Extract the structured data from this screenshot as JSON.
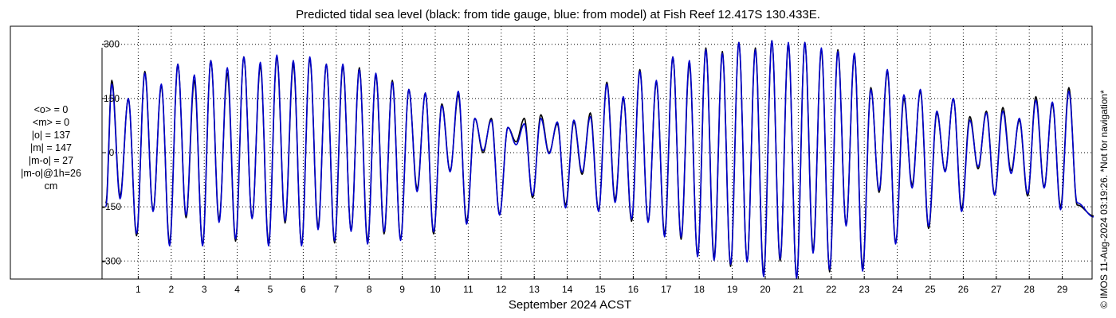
{
  "title": "Predicted tidal sea level (black: from tide gauge, blue: from model) at Fish Reef 12.417S 130.433E.",
  "stats_lines": [
    "<o> = 0",
    "<m> = 0",
    "|o| = 137",
    "|m| = 147",
    "|m-o| = 27",
    "|m-o|@1h=26",
    "cm"
  ],
  "side_note": "© IMOS 11-Aug-2024 03:19:26. *Not for navigation*",
  "colors": {
    "observed": "#000000",
    "model": "#0000cc",
    "grid": "#000000",
    "axes": "#000000"
  },
  "chart_data": {
    "type": "line",
    "title": "Predicted tidal sea level (black: from tide gauge, blue: from model) at Fish Reef 12.417S 130.433E.",
    "xlabel": "September 2024 ACST",
    "ylabel": "",
    "y_unit": "cm",
    "ylim": [
      -350,
      350
    ],
    "xlim": [
      0.0,
      30.0
    ],
    "y_ticks": [
      -300,
      -150,
      0,
      150,
      300
    ],
    "y_tick_labels": [
      "-300",
      "-150",
      "0",
      "150",
      "300"
    ],
    "x_ticks": [
      1,
      2,
      3,
      4,
      5,
      6,
      7,
      8,
      9,
      10,
      11,
      12,
      13,
      14,
      15,
      16,
      17,
      18,
      19,
      20,
      21,
      22,
      23,
      24,
      25,
      26,
      27,
      28,
      29
    ],
    "x_tick_labels": [
      "1",
      "2",
      "3",
      "4",
      "5",
      "6",
      "7",
      "8",
      "9",
      "10",
      "11",
      "12",
      "13",
      "14",
      "15",
      "16",
      "17",
      "18",
      "19",
      "20",
      "21",
      "22",
      "23",
      "24",
      "25",
      "26",
      "27",
      "28",
      "29"
    ],
    "grid": "dotted, at y ticks and x ticks",
    "legend": "none (colors described in title)",
    "series": [
      {
        "name": "tide gauge",
        "color": "black",
        "style": "line",
        "high_tide_peaks": [
          [
            0.2,
            200
          ],
          [
            0.7,
            150
          ],
          [
            1.2,
            225
          ],
          [
            1.7,
            185
          ],
          [
            2.2,
            245
          ],
          [
            2.7,
            200
          ],
          [
            3.2,
            255
          ],
          [
            3.7,
            220
          ],
          [
            4.2,
            265
          ],
          [
            4.7,
            240
          ],
          [
            5.2,
            265
          ],
          [
            5.7,
            245
          ],
          [
            6.2,
            260
          ],
          [
            6.7,
            245
          ],
          [
            7.2,
            240
          ],
          [
            7.7,
            235
          ],
          [
            8.2,
            215
          ],
          [
            8.7,
            200
          ],
          [
            9.2,
            175
          ],
          [
            9.7,
            165
          ],
          [
            10.2,
            135
          ],
          [
            10.7,
            160
          ],
          [
            11.2,
            95
          ],
          [
            11.7,
            95
          ],
          [
            12.2,
            70
          ],
          [
            12.7,
            95
          ],
          [
            13.2,
            105
          ],
          [
            13.7,
            80
          ],
          [
            14.2,
            85
          ],
          [
            14.7,
            110
          ],
          [
            15.2,
            195
          ],
          [
            15.7,
            150
          ],
          [
            16.2,
            230
          ],
          [
            16.7,
            195
          ],
          [
            17.2,
            265
          ],
          [
            17.7,
            245
          ],
          [
            18.2,
            290
          ],
          [
            18.7,
            280
          ],
          [
            19.2,
            305
          ],
          [
            19.7,
            290
          ],
          [
            20.2,
            310
          ],
          [
            20.7,
            300
          ],
          [
            21.2,
            305
          ],
          [
            21.7,
            285
          ],
          [
            22.2,
            285
          ],
          [
            22.7,
            270
          ],
          [
            23.2,
            180
          ],
          [
            23.7,
            225
          ],
          [
            24.2,
            150
          ],
          [
            24.7,
            170
          ],
          [
            25.2,
            110
          ],
          [
            25.7,
            150
          ],
          [
            26.2,
            100
          ],
          [
            26.7,
            115
          ],
          [
            27.2,
            125
          ],
          [
            27.7,
            90
          ],
          [
            28.2,
            155
          ],
          [
            28.7,
            135
          ],
          [
            29.2,
            180
          ]
        ]
      },
      {
        "name": "model",
        "color": "blue",
        "style": "line",
        "high_tide_peaks": [
          [
            0.2,
            190
          ],
          [
            0.7,
            150
          ],
          [
            1.2,
            220
          ],
          [
            1.7,
            190
          ],
          [
            2.2,
            245
          ],
          [
            2.7,
            215
          ],
          [
            3.2,
            255
          ],
          [
            3.7,
            235
          ],
          [
            4.2,
            265
          ],
          [
            4.7,
            250
          ],
          [
            5.2,
            270
          ],
          [
            5.7,
            255
          ],
          [
            6.2,
            265
          ],
          [
            6.7,
            245
          ],
          [
            7.2,
            245
          ],
          [
            7.7,
            230
          ],
          [
            8.2,
            220
          ],
          [
            8.7,
            195
          ],
          [
            9.2,
            175
          ],
          [
            9.7,
            165
          ],
          [
            10.2,
            130
          ],
          [
            10.7,
            170
          ],
          [
            11.2,
            95
          ],
          [
            11.7,
            90
          ],
          [
            12.2,
            70
          ],
          [
            12.7,
            80
          ],
          [
            13.2,
            95
          ],
          [
            13.7,
            85
          ],
          [
            14.2,
            90
          ],
          [
            14.7,
            100
          ],
          [
            15.2,
            190
          ],
          [
            15.7,
            155
          ],
          [
            16.2,
            225
          ],
          [
            16.7,
            200
          ],
          [
            17.2,
            265
          ],
          [
            17.7,
            255
          ],
          [
            18.2,
            285
          ],
          [
            18.7,
            275
          ],
          [
            19.2,
            305
          ],
          [
            19.7,
            285
          ],
          [
            20.2,
            310
          ],
          [
            20.7,
            305
          ],
          [
            21.2,
            305
          ],
          [
            21.7,
            290
          ],
          [
            22.2,
            280
          ],
          [
            22.7,
            275
          ],
          [
            23.2,
            175
          ],
          [
            23.7,
            230
          ],
          [
            24.2,
            160
          ],
          [
            24.7,
            175
          ],
          [
            25.2,
            115
          ],
          [
            25.7,
            150
          ],
          [
            26.2,
            90
          ],
          [
            26.7,
            110
          ],
          [
            27.2,
            115
          ],
          [
            27.7,
            95
          ],
          [
            28.2,
            145
          ],
          [
            28.7,
            140
          ],
          [
            29.2,
            170
          ]
        ]
      }
    ],
    "low_tide_troughs": [
      [
        0.45,
        -120
      ],
      [
        0.95,
        -230
      ],
      [
        1.45,
        -160
      ],
      [
        1.95,
        -250
      ],
      [
        2.45,
        -180
      ],
      [
        2.95,
        -255
      ],
      [
        3.45,
        -185
      ],
      [
        3.95,
        -245
      ],
      [
        4.45,
        -180
      ],
      [
        4.95,
        -250
      ],
      [
        5.45,
        -195
      ],
      [
        5.95,
        -255
      ],
      [
        6.45,
        -205
      ],
      [
        6.95,
        -250
      ],
      [
        7.45,
        -215
      ],
      [
        7.95,
        -245
      ],
      [
        8.45,
        -225
      ],
      [
        8.95,
        -240
      ],
      [
        9.45,
        -100
      ],
      [
        9.95,
        -225
      ],
      [
        10.45,
        -50
      ],
      [
        10.95,
        -190
      ],
      [
        11.45,
        0
      ],
      [
        11.95,
        -170
      ],
      [
        12.45,
        30
      ],
      [
        12.95,
        -125
      ],
      [
        13.45,
        0
      ],
      [
        13.95,
        -145
      ],
      [
        14.45,
        -60
      ],
      [
        14.95,
        -160
      ],
      [
        15.45,
        -130
      ],
      [
        15.95,
        -190
      ],
      [
        16.45,
        -190
      ],
      [
        16.95,
        -225
      ],
      [
        17.45,
        -240
      ],
      [
        17.95,
        -285
      ],
      [
        18.45,
        -290
      ],
      [
        18.95,
        -315
      ],
      [
        19.45,
        -300
      ],
      [
        19.95,
        -335
      ],
      [
        20.45,
        -300
      ],
      [
        20.95,
        -345
      ],
      [
        21.45,
        -270
      ],
      [
        21.95,
        -330
      ],
      [
        22.45,
        -200
      ],
      [
        22.95,
        -320
      ],
      [
        23.45,
        -110
      ],
      [
        23.95,
        -250
      ],
      [
        24.45,
        -90
      ],
      [
        24.95,
        -210
      ],
      [
        25.45,
        -50
      ],
      [
        25.95,
        -155
      ],
      [
        26.45,
        -45
      ],
      [
        26.95,
        -115
      ],
      [
        27.45,
        -50
      ],
      [
        27.95,
        -120
      ],
      [
        28.45,
        -95
      ],
      [
        28.95,
        -150
      ],
      [
        29.45,
        -145
      ],
      [
        29.95,
        -175
      ]
    ]
  }
}
